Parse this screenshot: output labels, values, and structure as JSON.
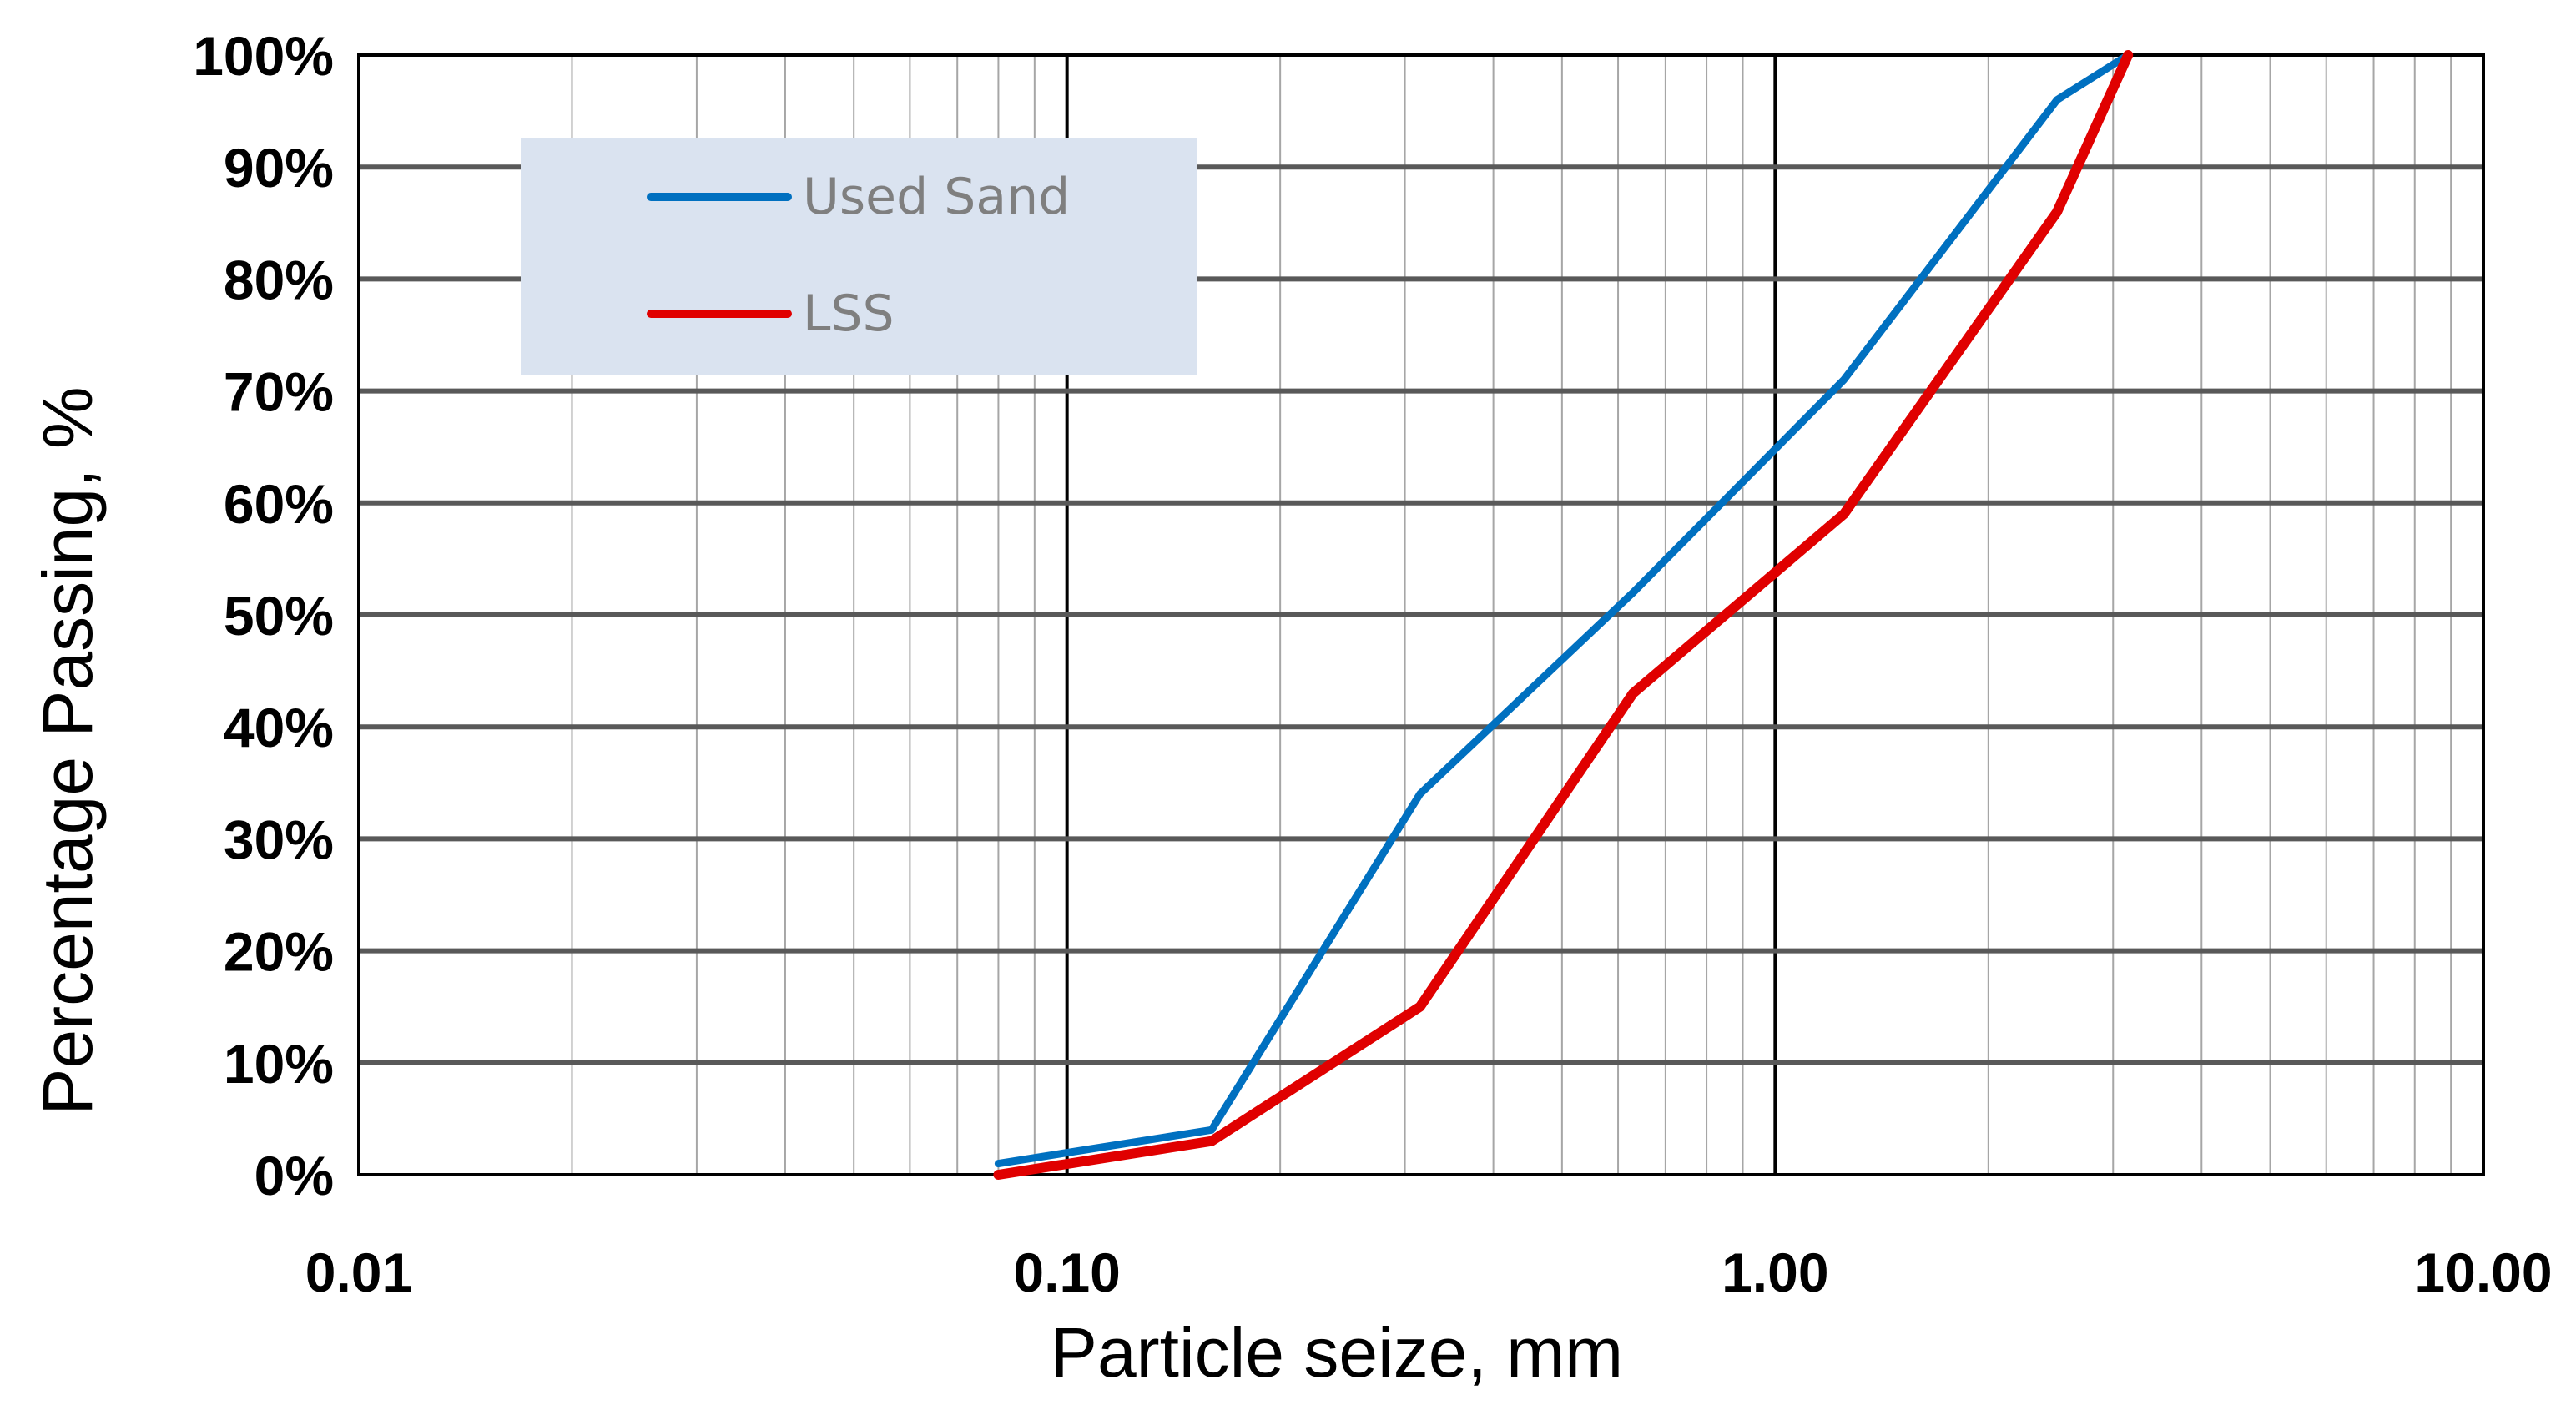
{
  "chart_data": {
    "type": "line",
    "x_scale": "log",
    "xlim": [
      0.01,
      10
    ],
    "ylim": [
      0,
      100
    ],
    "xlabel": "Particle  seize, mm",
    "ylabel": "Percentage  Passing, %",
    "x_tick_labels": [
      "0.01",
      "0.10",
      "1.00",
      "10.00"
    ],
    "y_tick_labels": [
      "0%",
      "10%",
      "20%",
      "30%",
      "40%",
      "50%",
      "60%",
      "70%",
      "80%",
      "90%",
      "100%"
    ],
    "grid": true,
    "legend_position": "top-left",
    "series": [
      {
        "name": "Used Sand",
        "color": "#0070c0",
        "x": [
          0.08,
          0.16,
          0.315,
          0.63,
          1.25,
          2.5,
          3.15
        ],
        "y": [
          1,
          4,
          34,
          52,
          71,
          96,
          100
        ]
      },
      {
        "name": "LSS",
        "color": "#e00000",
        "x": [
          0.08,
          0.16,
          0.315,
          0.63,
          1.25,
          2.5,
          3.15
        ],
        "y": [
          0,
          3,
          15,
          43,
          59,
          86,
          100
        ]
      }
    ],
    "legend_background": "#dae3f0"
  }
}
